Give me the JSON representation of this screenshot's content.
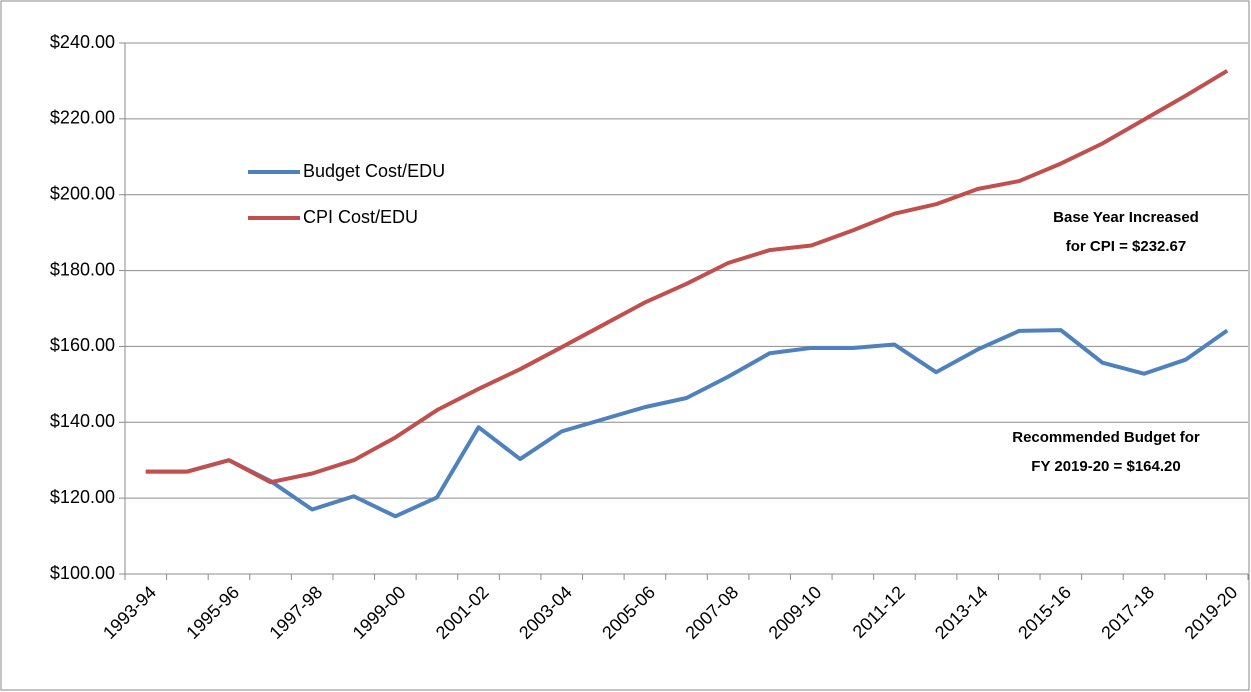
{
  "chart_data": {
    "type": "line",
    "categories": [
      "1993-94",
      null,
      "1995-96",
      null,
      "1997-98",
      null,
      "1999-00",
      null,
      "2001-02",
      null,
      "2003-04",
      null,
      "2005-06",
      null,
      "2007-08",
      null,
      "2009-10",
      null,
      "2011-12",
      null,
      "2013-14",
      null,
      "2015-16",
      null,
      "2017-18",
      null,
      "2019-20"
    ],
    "series": [
      {
        "name": "Budget Cost/EDU",
        "color": "#4f81bd",
        "values": [
          127,
          127,
          130,
          124.5,
          117,
          120.5,
          115.2,
          120.2,
          138.7,
          130.3,
          137.6,
          140.8,
          144,
          146.4,
          152,
          158.2,
          159.6,
          159.6,
          160.5,
          153.2,
          159.2,
          164.1,
          164.3,
          155.7,
          152.8,
          156.5,
          164.2
        ]
      },
      {
        "name": "CPI Cost/EDU",
        "color": "#c0504d",
        "values": [
          127,
          127,
          130,
          124.2,
          126.5,
          130,
          136,
          143.2,
          148.8,
          154,
          159.8,
          165.7,
          171.6,
          176.5,
          182,
          185.4,
          186.6,
          190.6,
          195,
          197.5,
          201.5,
          203.6,
          208.2,
          213.5,
          219.8,
          226.1,
          232.67
        ]
      }
    ],
    "ylim": [
      100,
      240
    ],
    "yticks": [
      {
        "value": 100,
        "label": "$100.00"
      },
      {
        "value": 120,
        "label": "$120.00"
      },
      {
        "value": 140,
        "label": "$140.00"
      },
      {
        "value": 160,
        "label": "$160.00"
      },
      {
        "value": 180,
        "label": "$180.00"
      },
      {
        "value": 200,
        "label": "$200.00"
      },
      {
        "value": 220,
        "label": "$220.00"
      },
      {
        "value": 240,
        "label": "$240.00"
      }
    ],
    "grid": true,
    "legend": "upper left",
    "annotations": [
      {
        "lines": [
          "Base Year Increased",
          "for CPI = $232.67"
        ],
        "color": "#c00000"
      },
      {
        "lines": [
          "Recommended Budget for",
          "FY 2019-20 = $164.20"
        ],
        "color": "#7030a0"
      }
    ]
  }
}
